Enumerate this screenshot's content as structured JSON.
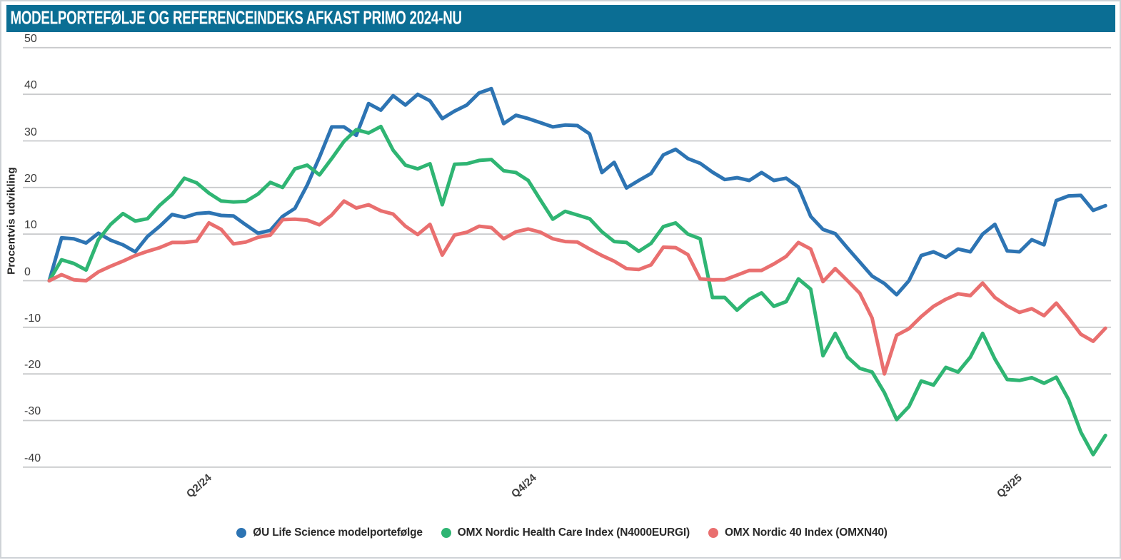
{
  "header": {
    "title": "MODELPORTEFØLJE OG REFERENCEINDEKS AFKAST PRIMO 2024-NU"
  },
  "colors": {
    "title_bar": "#0b6e94",
    "grid": "#c9cacc",
    "tick_text": "#3b3b3b",
    "background": "#ffffff"
  },
  "chart_data": {
    "type": "line",
    "title": "MODELPORTEFØLJE OG REFERENCEINDEKS AFKAST PRIMO 2024-NU",
    "x_unit": "uge (primo 2024 = 0)",
    "grid": true,
    "legend_position": "bottom",
    "y_axis": {
      "label": "Procentvis udvikling",
      "ticks": [
        50,
        40,
        30,
        20,
        10,
        0,
        -10,
        -20,
        -30,
        -40
      ],
      "ylim": [
        -43,
        52
      ]
    },
    "x_axis": {
      "tick_labels": [
        "Q2/24",
        "Q4/24",
        "Q3/25"
      ],
      "tick_weeks": [
        13,
        39.5,
        79
      ]
    },
    "series": [
      {
        "name": "ØU Life Science modelportefølge",
        "color": "#2d74b3",
        "values": [
          0,
          9.2,
          9.0,
          8.1,
          10.2,
          8.7,
          7.7,
          6.2,
          9.5,
          11.7,
          14.2,
          13.6,
          14.4,
          14.6,
          14.0,
          13.9,
          12.0,
          10.2,
          10.8,
          13.8,
          15.5,
          20.5,
          26.5,
          33.0,
          33.0,
          31.2,
          38.0,
          36.6,
          39.7,
          37.7,
          40.0,
          38.6,
          34.8,
          36.4,
          37.7,
          40.3,
          41.2,
          33.7,
          35.5,
          34.8,
          33.9,
          33.0,
          33.4,
          33.3,
          31.5,
          23.2,
          25.4,
          19.9,
          21.5,
          23.0,
          27.0,
          28.2,
          26.2,
          25.2,
          23.3,
          21.7,
          22.1,
          21.5,
          23.2,
          21.5,
          22.0,
          20.1,
          13.8,
          11.0,
          10.1,
          7.0,
          4.0,
          1.0,
          -0.6,
          -3.0,
          0.0,
          5.4,
          6.2,
          5.0,
          6.8,
          6.2,
          10.0,
          12.1,
          6.4,
          6.2,
          8.8,
          7.7,
          17.2,
          18.2,
          18.3,
          15.1,
          16.1
        ]
      },
      {
        "name": "OMX Nordic Health Care Index (N4000EURGI)",
        "color": "#2fb573",
        "values": [
          0,
          4.5,
          3.7,
          2.3,
          8.8,
          12.1,
          14.4,
          12.8,
          13.3,
          16.2,
          18.5,
          22.0,
          21.0,
          18.8,
          17.1,
          16.9,
          17.0,
          18.6,
          21.1,
          20.0,
          24.0,
          24.8,
          22.7,
          26.2,
          29.9,
          32.4,
          31.7,
          33.1,
          28.0,
          24.8,
          24.0,
          25.1,
          16.3,
          25.0,
          25.1,
          25.8,
          26.0,
          23.6,
          23.2,
          21.5,
          17.3,
          13.2,
          14.9,
          14.1,
          13.3,
          10.5,
          8.4,
          8.2,
          6.3,
          8.0,
          11.6,
          12.4,
          10.0,
          9.0,
          -3.6,
          -3.6,
          -6.3,
          -4.0,
          -2.6,
          -5.5,
          -4.5,
          0.4,
          -1.8,
          -16.1,
          -11.3,
          -16.4,
          -18.8,
          -19.6,
          -24.0,
          -29.8,
          -27.0,
          -21.5,
          -22.4,
          -18.6,
          -19.6,
          -16.4,
          -11.3,
          -16.8,
          -21.2,
          -21.4,
          -20.8,
          -22.0,
          -20.7,
          -25.5,
          -32.5,
          -37.3,
          -33.2
        ]
      },
      {
        "name": "OMX Nordic 40 Index (OMXN40)",
        "color": "#e96f6f",
        "values": [
          0,
          1.3,
          0.2,
          0.0,
          1.9,
          3.1,
          4.2,
          5.4,
          6.3,
          7.1,
          8.2,
          8.2,
          8.5,
          12.4,
          11.0,
          7.9,
          8.3,
          9.3,
          9.8,
          13.1,
          13.2,
          13.0,
          12.0,
          14.1,
          17.1,
          15.6,
          16.3,
          15.0,
          14.3,
          11.7,
          9.9,
          12.1,
          5.5,
          9.8,
          10.4,
          11.7,
          11.4,
          9.0,
          10.5,
          11.1,
          10.4,
          9.0,
          8.4,
          8.3,
          6.8,
          5.4,
          4.2,
          2.6,
          2.4,
          3.4,
          7.2,
          7.1,
          5.6,
          0.4,
          0.2,
          0.2,
          1.2,
          2.2,
          2.2,
          3.6,
          5.2,
          8.2,
          6.8,
          -0.2,
          2.6,
          0.0,
          -2.7,
          -8.0,
          -20.0,
          -11.7,
          -10.3,
          -7.7,
          -5.5,
          -4.0,
          -2.8,
          -3.2,
          -0.5,
          -3.6,
          -5.4,
          -6.8,
          -6.0,
          -7.5,
          -4.8,
          -8.0,
          -11.5,
          -13.0,
          -10.2
        ]
      }
    ]
  }
}
